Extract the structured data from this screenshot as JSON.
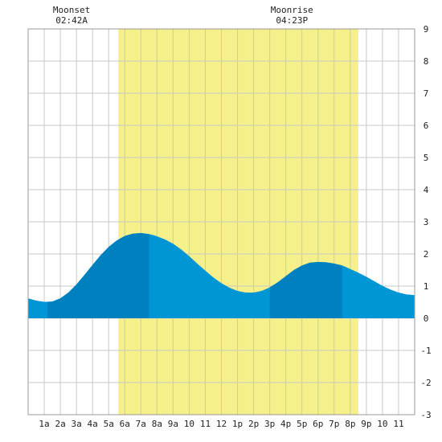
{
  "chart_data": {
    "type": "area",
    "title": "",
    "xlabel": "",
    "ylabel": "",
    "xlim": [
      0,
      24
    ],
    "ylim": [
      -3,
      9
    ],
    "grid": true,
    "x_ticks": [
      {
        "x": 1,
        "label": "1a"
      },
      {
        "x": 2,
        "label": "2a"
      },
      {
        "x": 3,
        "label": "3a"
      },
      {
        "x": 4,
        "label": "4a"
      },
      {
        "x": 5,
        "label": "5a"
      },
      {
        "x": 6,
        "label": "6a"
      },
      {
        "x": 7,
        "label": "7a"
      },
      {
        "x": 8,
        "label": "8a"
      },
      {
        "x": 9,
        "label": "9a"
      },
      {
        "x": 10,
        "label": "10"
      },
      {
        "x": 11,
        "label": "11"
      },
      {
        "x": 12,
        "label": "12"
      },
      {
        "x": 13,
        "label": "1p"
      },
      {
        "x": 14,
        "label": "2p"
      },
      {
        "x": 15,
        "label": "3p"
      },
      {
        "x": 16,
        "label": "4p"
      },
      {
        "x": 17,
        "label": "5p"
      },
      {
        "x": 18,
        "label": "6p"
      },
      {
        "x": 19,
        "label": "7p"
      },
      {
        "x": 20,
        "label": "8p"
      },
      {
        "x": 21,
        "label": "9p"
      },
      {
        "x": 22,
        "label": "10"
      },
      {
        "x": 23,
        "label": "11"
      }
    ],
    "y_ticks": [
      -3,
      -2,
      -1,
      0,
      1,
      2,
      3,
      4,
      5,
      6,
      7,
      8,
      9
    ],
    "daylight": {
      "start": 5.6,
      "end": 20.5,
      "color": "#f5f089"
    },
    "moon_events": [
      {
        "label": "Moonset",
        "time": "02:42A",
        "x": 2.7
      },
      {
        "label": "Moonrise",
        "time": "04:23P",
        "x": 16.38
      }
    ],
    "series": [
      {
        "x": [
          0,
          0.5,
          1.0,
          1.5,
          2.0,
          2.5,
          3.0,
          3.5,
          4.0,
          4.5,
          5.0,
          5.5,
          6.0,
          6.5,
          7.0,
          7.5,
          7.8,
          8.0,
          8.5,
          9.0,
          9.5,
          10.0,
          10.5,
          11.0,
          11.5,
          12.0,
          12.5,
          13.0,
          13.5,
          14.0,
          14.5,
          15.0,
          15.5,
          16.0,
          16.5,
          17.0,
          17.5,
          18.0,
          18.5,
          19.0,
          19.5,
          19.7,
          20.0,
          20.5,
          21.0,
          21.5,
          22.0,
          22.5,
          23.0,
          23.5,
          24.0
        ],
        "y": [
          0.62,
          0.55,
          0.51,
          0.52,
          0.62,
          0.8,
          1.05,
          1.35,
          1.66,
          1.96,
          2.22,
          2.42,
          2.56,
          2.63,
          2.65,
          2.62,
          2.58,
          2.55,
          2.45,
          2.32,
          2.14,
          1.93,
          1.7,
          1.48,
          1.27,
          1.09,
          0.95,
          0.85,
          0.8,
          0.8,
          0.85,
          0.96,
          1.12,
          1.31,
          1.5,
          1.64,
          1.73,
          1.75,
          1.74,
          1.7,
          1.64,
          1.6,
          1.53,
          1.42,
          1.29,
          1.15,
          1.01,
          0.89,
          0.8,
          0.74,
          0.72
        ]
      }
    ],
    "tide_extremes": [
      {
        "type": "low",
        "x": 1.2
      },
      {
        "type": "high",
        "x": 7.5
      },
      {
        "type": "low",
        "x": 15.0
      },
      {
        "type": "high",
        "x": 19.5
      }
    ],
    "colors": {
      "water": "#0096d6",
      "water_dark": "#0080bf",
      "grid": "#c8c8c8",
      "frame": "#999999"
    }
  }
}
